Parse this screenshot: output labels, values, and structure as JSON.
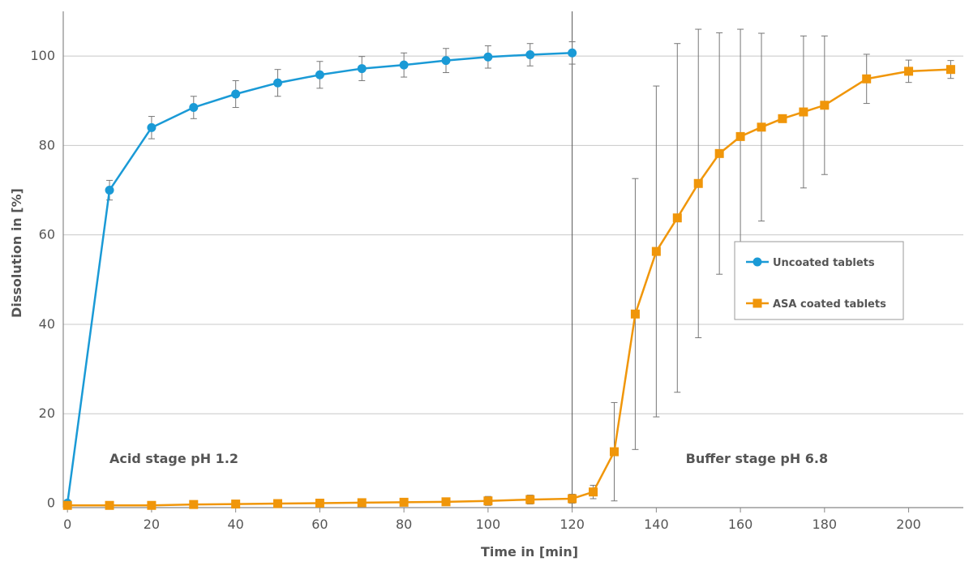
{
  "chart_data": {
    "type": "line",
    "title": "",
    "xlabel": "Time in [min]",
    "ylabel": "Dissolution in [%]",
    "xlim": [
      -1,
      213
    ],
    "ylim": [
      -1,
      110
    ],
    "xticks": [
      0,
      20,
      40,
      60,
      80,
      100,
      120,
      140,
      160,
      180,
      200
    ],
    "yticks": [
      0,
      20,
      40,
      60,
      80,
      100
    ],
    "grid": "horizontal",
    "legend_position": "right",
    "divider_x": 120,
    "annotations": [
      {
        "text": "Acid stage pH 1.2",
        "x": 10,
        "y": 9
      },
      {
        "text": "Buffer stage pH 6.8",
        "x": 147,
        "y": 9
      }
    ],
    "series": [
      {
        "name": "Uncoated tablets",
        "color": "#1a9ad6",
        "marker": "circle",
        "x": [
          0,
          10,
          20,
          30,
          40,
          50,
          60,
          70,
          80,
          90,
          100,
          110,
          120
        ],
        "y": [
          0,
          70,
          84,
          88.5,
          91.5,
          94,
          95.8,
          97.2,
          98,
          99,
          99.8,
          100.3,
          100.7
        ],
        "err": [
          0.5,
          2.2,
          2.5,
          2.5,
          3,
          3,
          3,
          2.7,
          2.7,
          2.7,
          2.5,
          2.5,
          2.5
        ]
      },
      {
        "name": "ASA coated tablets",
        "color": "#f0960a",
        "marker": "square",
        "x": [
          0,
          10,
          20,
          30,
          40,
          50,
          60,
          70,
          80,
          90,
          100,
          110,
          120,
          125,
          130,
          135,
          140,
          145,
          150,
          155,
          160,
          165,
          170,
          175,
          180,
          190,
          200,
          210
        ],
        "y": [
          -0.5,
          -0.5,
          -0.5,
          -0.3,
          -0.2,
          -0.1,
          0,
          0.1,
          0.2,
          0.3,
          0.5,
          0.8,
          1,
          2.5,
          11.5,
          42.3,
          56.3,
          63.8,
          71.5,
          78.2,
          82,
          84.1,
          86,
          87.5,
          89,
          94.9,
          96.6,
          97
        ],
        "err": [
          0,
          0,
          0,
          0,
          0,
          0,
          0,
          0,
          0,
          0,
          1,
          1,
          1,
          1.5,
          11,
          30.3,
          37,
          39,
          34.5,
          27,
          24,
          21,
          0,
          17,
          15.5,
          5.5,
          2.5,
          2
        ]
      }
    ]
  }
}
